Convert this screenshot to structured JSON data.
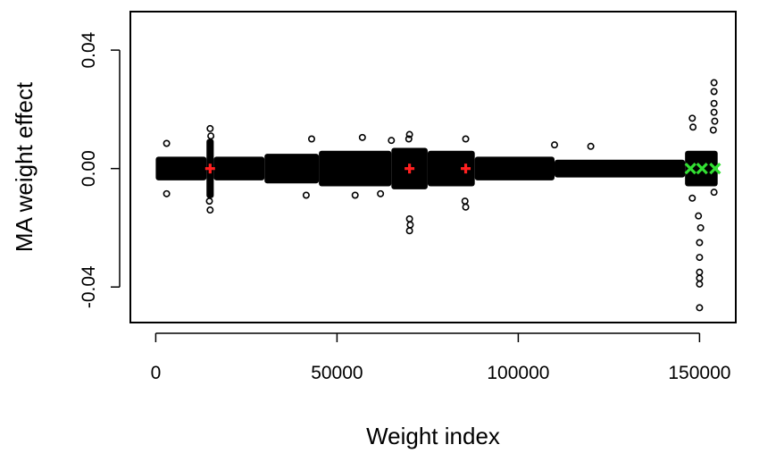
{
  "chart_data": {
    "type": "scatter",
    "title": "",
    "xlabel": "Weight index",
    "ylabel": "MA weight effect",
    "xlim": [
      -7000,
      160000
    ],
    "ylim": [
      -0.052,
      0.053
    ],
    "xticks": [
      0,
      50000,
      100000,
      150000
    ],
    "xtick_labels": [
      "0",
      "50000",
      "100000",
      "150000"
    ],
    "yticks": [
      -0.04,
      0.0,
      0.04
    ],
    "ytick_labels": [
      "-0.04",
      "0.00",
      "0.04"
    ],
    "grid": false,
    "legend": "none",
    "colors": {
      "points": "#000000",
      "red_markers": "#ff2020",
      "green_markers": "#33e033"
    },
    "bands": [
      {
        "x_start": 0,
        "x_end": 14000,
        "spread": 0.004
      },
      {
        "x_start": 14000,
        "x_end": 16000,
        "spread": 0.01
      },
      {
        "x_start": 16000,
        "x_end": 30000,
        "spread": 0.004
      },
      {
        "x_start": 30000,
        "x_end": 45000,
        "spread": 0.005
      },
      {
        "x_start": 45000,
        "x_end": 65000,
        "spread": 0.006
      },
      {
        "x_start": 65000,
        "x_end": 75000,
        "spread": 0.007
      },
      {
        "x_start": 75000,
        "x_end": 88000,
        "spread": 0.006
      },
      {
        "x_start": 88000,
        "x_end": 110000,
        "spread": 0.004
      },
      {
        "x_start": 110000,
        "x_end": 146000,
        "spread": 0.003
      },
      {
        "x_start": 146000,
        "x_end": 155000,
        "spread": 0.006
      }
    ],
    "points": [
      {
        "x": 15000,
        "y": 0.0135
      },
      {
        "x": 15000,
        "y": -0.014
      },
      {
        "x": 15200,
        "y": 0.011
      },
      {
        "x": 14800,
        "y": -0.011
      },
      {
        "x": 3000,
        "y": 0.0085
      },
      {
        "x": 3000,
        "y": -0.0085
      },
      {
        "x": 43000,
        "y": 0.01
      },
      {
        "x": 41500,
        "y": -0.009
      },
      {
        "x": 57000,
        "y": 0.0105
      },
      {
        "x": 55000,
        "y": -0.009
      },
      {
        "x": 65000,
        "y": 0.0095
      },
      {
        "x": 62000,
        "y": -0.0085
      },
      {
        "x": 70000,
        "y": 0.0115
      },
      {
        "x": 70000,
        "y": -0.017
      },
      {
        "x": 70000,
        "y": -0.021
      },
      {
        "x": 70200,
        "y": -0.019
      },
      {
        "x": 69800,
        "y": 0.01
      },
      {
        "x": 85500,
        "y": 0.01
      },
      {
        "x": 85500,
        "y": -0.013
      },
      {
        "x": 85300,
        "y": -0.011
      },
      {
        "x": 110000,
        "y": 0.008
      },
      {
        "x": 120000,
        "y": 0.0075
      },
      {
        "x": 148000,
        "y": 0.017
      },
      {
        "x": 148000,
        "y": -0.01
      },
      {
        "x": 148200,
        "y": 0.014
      },
      {
        "x": 150000,
        "y": -0.025
      },
      {
        "x": 150000,
        "y": -0.03
      },
      {
        "x": 150000,
        "y": -0.035
      },
      {
        "x": 150000,
        "y": -0.037
      },
      {
        "x": 150000,
        "y": -0.039
      },
      {
        "x": 150000,
        "y": -0.047
      },
      {
        "x": 150300,
        "y": -0.02
      },
      {
        "x": 149700,
        "y": -0.016
      },
      {
        "x": 154000,
        "y": 0.029
      },
      {
        "x": 154000,
        "y": 0.026
      },
      {
        "x": 154000,
        "y": 0.022
      },
      {
        "x": 154000,
        "y": 0.019
      },
      {
        "x": 154200,
        "y": 0.016
      },
      {
        "x": 153800,
        "y": 0.013
      },
      {
        "x": 154000,
        "y": -0.008
      }
    ],
    "markers": [
      {
        "x": 15000,
        "y": 0.0,
        "symbol": "plus",
        "color": "red"
      },
      {
        "x": 70000,
        "y": 0.0,
        "symbol": "plus",
        "color": "red"
      },
      {
        "x": 85500,
        "y": 0.0,
        "symbol": "plus",
        "color": "red"
      },
      {
        "x": 147500,
        "y": 0.0,
        "symbol": "cross",
        "color": "green"
      },
      {
        "x": 150700,
        "y": 0.0,
        "symbol": "cross",
        "color": "green"
      },
      {
        "x": 154300,
        "y": 0.0,
        "symbol": "cross",
        "color": "green"
      }
    ]
  }
}
